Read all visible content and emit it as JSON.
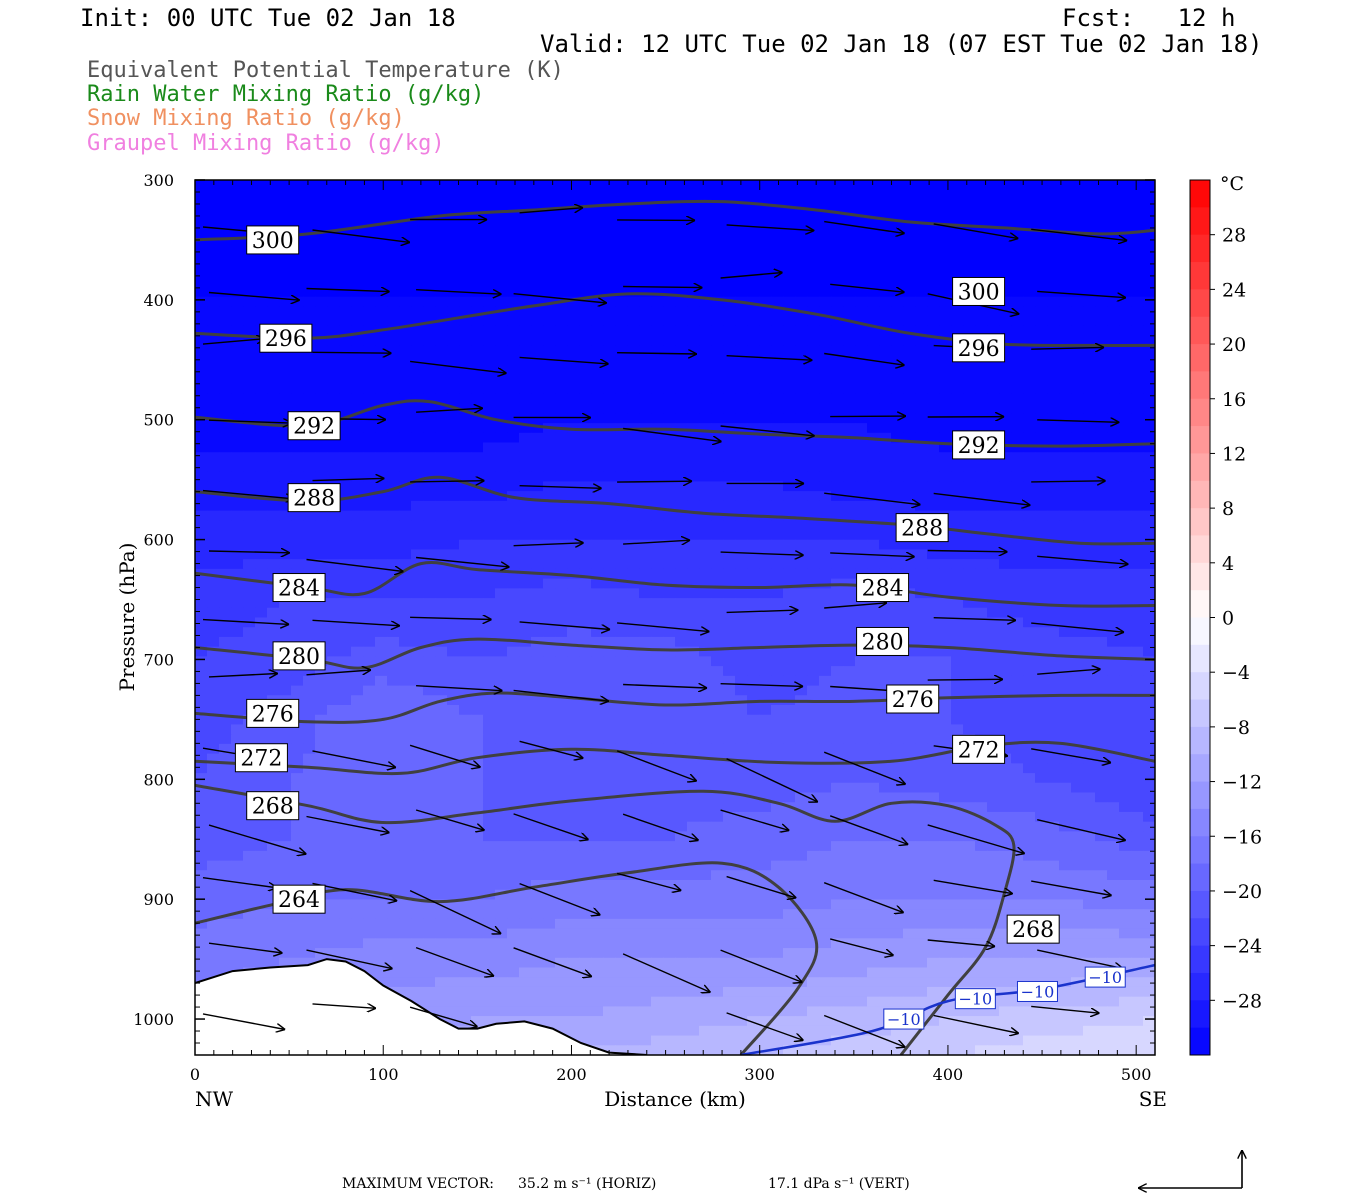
{
  "header": {
    "init": "Init: 00 UTC Tue 02 Jan 18",
    "fcst": "Fcst:   12 h",
    "valid": "Valid: 12 UTC Tue 02 Jan 18 (07 EST Tue 02 Jan 18)"
  },
  "fields": [
    {
      "label": "Equivalent Potential Temperature (K)",
      "color": "#555555"
    },
    {
      "label": "Rain Water Mixing Ratio (g/kg)",
      "color": "#1a8a1a"
    },
    {
      "label": "Snow Mixing Ratio (g/kg)",
      "color": "#f09060"
    },
    {
      "label": "Graupel Mixing Ratio (g/kg)",
      "color": "#f080e0"
    }
  ],
  "footer": {
    "max_vector_label": "MAXIMUM VECTOR:",
    "horiz": "35.2 m s⁻¹ (HORIZ)",
    "vert": "17.1 dPa s⁻¹ (VERT)"
  },
  "chart_data": {
    "type": "contour-cross-section",
    "xlabel": "Distance (km)",
    "ylabel": "Pressure (hPa)",
    "xlim": [
      0,
      510
    ],
    "ylim": [
      1030,
      300
    ],
    "x_ticks": [
      0,
      100,
      200,
      300,
      400,
      500
    ],
    "y_ticks": [
      300,
      400,
      500,
      600,
      700,
      800,
      900,
      1000
    ],
    "x_endpoints": [
      "NW",
      "SE"
    ],
    "colorbar": {
      "unit": "°C",
      "range": [
        -32,
        32
      ],
      "labels": [
        28,
        24,
        20,
        16,
        12,
        8,
        4,
        0,
        -4,
        -8,
        -12,
        -16,
        -20,
        -24,
        -28
      ],
      "low_color": "#0000ff",
      "zero_color": "#ffffff",
      "high_color": "#ff0000"
    },
    "theta_e_contours": [
      {
        "value": 300,
        "pts": [
          [
            0,
            350
          ],
          [
            60,
            345
          ],
          [
            130,
            330
          ],
          [
            180,
            325
          ],
          [
            230,
            320
          ],
          [
            280,
            318
          ],
          [
            330,
            325
          ],
          [
            380,
            335
          ],
          [
            430,
            340
          ],
          [
            480,
            345
          ],
          [
            510,
            342
          ]
        ]
      },
      {
        "value": 296,
        "pts": [
          [
            0,
            428
          ],
          [
            60,
            432
          ],
          [
            100,
            425
          ],
          [
            140,
            415
          ],
          [
            180,
            405
          ],
          [
            230,
            395
          ],
          [
            280,
            400
          ],
          [
            330,
            412
          ],
          [
            380,
            428
          ],
          [
            430,
            437
          ],
          [
            480,
            438
          ],
          [
            510,
            438
          ]
        ]
      },
      {
        "value": 292,
        "pts": [
          [
            0,
            498
          ],
          [
            60,
            505
          ],
          [
            100,
            488
          ],
          [
            125,
            485
          ],
          [
            160,
            500
          ],
          [
            200,
            508
          ],
          [
            250,
            508
          ],
          [
            300,
            512
          ],
          [
            350,
            515
          ],
          [
            400,
            520
          ],
          [
            460,
            522
          ],
          [
            510,
            520
          ]
        ]
      },
      {
        "value": 288,
        "pts": [
          [
            0,
            560
          ],
          [
            60,
            568
          ],
          [
            100,
            560
          ],
          [
            130,
            548
          ],
          [
            170,
            565
          ],
          [
            220,
            570
          ],
          [
            270,
            578
          ],
          [
            320,
            582
          ],
          [
            380,
            588
          ],
          [
            420,
            595
          ],
          [
            470,
            603
          ],
          [
            510,
            603
          ]
        ]
      },
      {
        "value": 284,
        "pts": [
          [
            0,
            628
          ],
          [
            60,
            640
          ],
          [
            90,
            645
          ],
          [
            120,
            620
          ],
          [
            150,
            625
          ],
          [
            200,
            630
          ],
          [
            250,
            638
          ],
          [
            300,
            640
          ],
          [
            350,
            638
          ],
          [
            400,
            648
          ],
          [
            460,
            655
          ],
          [
            510,
            655
          ]
        ]
      },
      {
        "value": 280,
        "pts": [
          [
            0,
            690
          ],
          [
            60,
            700
          ],
          [
            90,
            707
          ],
          [
            120,
            690
          ],
          [
            150,
            683
          ],
          [
            200,
            688
          ],
          [
            250,
            692
          ],
          [
            300,
            690
          ],
          [
            350,
            688
          ],
          [
            400,
            690
          ],
          [
            460,
            697
          ],
          [
            510,
            700
          ]
        ]
      },
      {
        "value": 276,
        "pts": [
          [
            0,
            745
          ],
          [
            60,
            752
          ],
          [
            100,
            750
          ],
          [
            130,
            735
          ],
          [
            160,
            728
          ],
          [
            200,
            732
          ],
          [
            250,
            738
          ],
          [
            300,
            735
          ],
          [
            350,
            735
          ],
          [
            400,
            732
          ],
          [
            460,
            730
          ],
          [
            510,
            730
          ]
        ]
      },
      {
        "value": 272,
        "pts": [
          [
            0,
            785
          ],
          [
            60,
            790
          ],
          [
            110,
            795
          ],
          [
            150,
            782
          ],
          [
            200,
            775
          ],
          [
            250,
            780
          ],
          [
            310,
            786
          ],
          [
            370,
            785
          ],
          [
            420,
            772
          ],
          [
            460,
            770
          ],
          [
            510,
            785
          ]
        ]
      },
      {
        "value": 268,
        "pts": [
          [
            0,
            805
          ],
          [
            60,
            822
          ],
          [
            100,
            836
          ],
          [
            150,
            828
          ],
          [
            200,
            818
          ],
          [
            270,
            810
          ],
          [
            310,
            820
          ],
          [
            340,
            835
          ],
          [
            370,
            820
          ],
          [
            400,
            822
          ],
          [
            425,
            838
          ],
          [
            435,
            855
          ],
          [
            430,
            895
          ],
          [
            420,
            940
          ],
          [
            400,
            980
          ],
          [
            375,
            1030
          ]
        ]
      },
      {
        "value": 264,
        "pts": [
          [
            0,
            920
          ],
          [
            40,
            905
          ],
          [
            80,
            892
          ],
          [
            130,
            902
          ],
          [
            180,
            890
          ],
          [
            230,
            878
          ],
          [
            280,
            870
          ],
          [
            310,
            890
          ],
          [
            330,
            935
          ],
          [
            320,
            975
          ],
          [
            290,
            1030
          ]
        ]
      }
    ],
    "theta_e_labels": [
      {
        "value": 300,
        "x": 28,
        "p": 350
      },
      {
        "value": 300,
        "x": 403,
        "p": 393
      },
      {
        "value": 296,
        "x": 35,
        "p": 432
      },
      {
        "value": 296,
        "x": 403,
        "p": 440
      },
      {
        "value": 292,
        "x": 50,
        "p": 505
      },
      {
        "value": 292,
        "x": 403,
        "p": 521
      },
      {
        "value": 288,
        "x": 50,
        "p": 565
      },
      {
        "value": 288,
        "x": 373,
        "p": 590
      },
      {
        "value": 284,
        "x": 42,
        "p": 640
      },
      {
        "value": 284,
        "x": 352,
        "p": 640
      },
      {
        "value": 280,
        "x": 42,
        "p": 697
      },
      {
        "value": 280,
        "x": 352,
        "p": 685
      },
      {
        "value": 276,
        "x": 28,
        "p": 745
      },
      {
        "value": 276,
        "x": 368,
        "p": 733
      },
      {
        "value": 272,
        "x": 22,
        "p": 782
      },
      {
        "value": 272,
        "x": 403,
        "p": 775
      },
      {
        "value": 268,
        "x": 28,
        "p": 822
      },
      {
        "value": 268,
        "x": 432,
        "p": 925
      },
      {
        "value": 264,
        "x": 42,
        "p": 900
      }
    ],
    "isotherm_minus10": {
      "value": -10,
      "pts": [
        [
          290,
          1030
        ],
        [
          360,
          1010
        ],
        [
          400,
          985
        ],
        [
          450,
          975
        ],
        [
          510,
          955
        ]
      ],
      "labels": [
        {
          "x": 367,
          "p": 1000
        },
        {
          "x": 405,
          "p": 983
        },
        {
          "x": 438,
          "p": 977
        },
        {
          "x": 474,
          "p": 965
        }
      ]
    },
    "terrain": {
      "p_top": 1030,
      "pts": [
        [
          0,
          970
        ],
        [
          20,
          960
        ],
        [
          40,
          957
        ],
        [
          60,
          955
        ],
        [
          70,
          950
        ],
        [
          80,
          952
        ],
        [
          90,
          960
        ],
        [
          100,
          972
        ],
        [
          115,
          985
        ],
        [
          130,
          1000
        ],
        [
          140,
          1008
        ],
        [
          150,
          1008
        ],
        [
          160,
          1004
        ],
        [
          175,
          1002
        ],
        [
          190,
          1008
        ],
        [
          205,
          1020
        ],
        [
          220,
          1028
        ],
        [
          240,
          1030
        ]
      ]
    },
    "temperature_shading": {
      "cols": [
        0,
        50,
        100,
        150,
        200,
        250,
        300,
        350,
        400,
        450,
        510
      ],
      "rows": [
        {
          "p": 300,
          "t": [
            -33,
            -33,
            -33,
            -33,
            -33,
            -33,
            -33,
            -33,
            -33,
            -33,
            -33
          ]
        },
        {
          "p": 400,
          "t": [
            -32,
            -32,
            -32,
            -32,
            -32,
            -32,
            -32,
            -32,
            -32,
            -32,
            -32
          ]
        },
        {
          "p": 500,
          "t": [
            -31,
            -31,
            -31,
            -31,
            -30,
            -30,
            -30,
            -30,
            -31,
            -31,
            -31
          ]
        },
        {
          "p": 550,
          "t": [
            -29,
            -29,
            -29,
            -29,
            -28,
            -28,
            -28,
            -29,
            -29,
            -29,
            -29
          ]
        },
        {
          "p": 600,
          "t": [
            -27,
            -27,
            -27,
            -26,
            -26,
            -26,
            -26,
            -26,
            -27,
            -27,
            -27
          ]
        },
        {
          "p": 650,
          "t": [
            -25,
            -24,
            -24,
            -24,
            -23,
            -24,
            -24,
            -23,
            -24,
            -25,
            -25
          ]
        },
        {
          "p": 700,
          "t": [
            -24,
            -23,
            -21,
            -22,
            -21,
            -21,
            -23,
            -22,
            -22,
            -23,
            -24
          ]
        },
        {
          "p": 750,
          "t": [
            -23,
            -21,
            -18,
            -20,
            -20,
            -20,
            -22,
            -21,
            -22,
            -23,
            -24
          ]
        },
        {
          "p": 800,
          "t": [
            -22,
            -20,
            -19,
            -20,
            -21,
            -21,
            -21,
            -20,
            -21,
            -22,
            -24
          ]
        },
        {
          "p": 850,
          "t": [
            -21,
            -20,
            -19,
            -20,
            -20,
            -20,
            -19,
            -18,
            -18,
            -19,
            -21
          ]
        },
        {
          "p": 900,
          "t": [
            -19,
            -18,
            -18,
            -18,
            -17,
            -17,
            -17,
            -16,
            -16,
            -16,
            -17
          ]
        },
        {
          "p": 950,
          "t": [
            -17,
            -16,
            -15,
            -15,
            -14,
            -14,
            -14,
            -13,
            -12,
            -12,
            -12
          ]
        },
        {
          "p": 1000,
          "t": [
            -15,
            -14,
            -13,
            -12,
            -12,
            -11,
            -10,
            -9,
            -8,
            -7,
            -6
          ]
        },
        {
          "p": 1030,
          "t": [
            -14,
            -13,
            -12,
            -11,
            -10,
            -9,
            -8,
            -7,
            -6,
            -5,
            -4
          ]
        }
      ]
    },
    "vector_grid": {
      "x": [
        0,
        55,
        110,
        165,
        220,
        275,
        330,
        385,
        440,
        495
      ],
      "p": [
        335,
        390,
        445,
        500,
        555,
        610,
        665,
        720,
        775,
        830,
        885,
        940,
        995,
        1025
      ]
    }
  }
}
